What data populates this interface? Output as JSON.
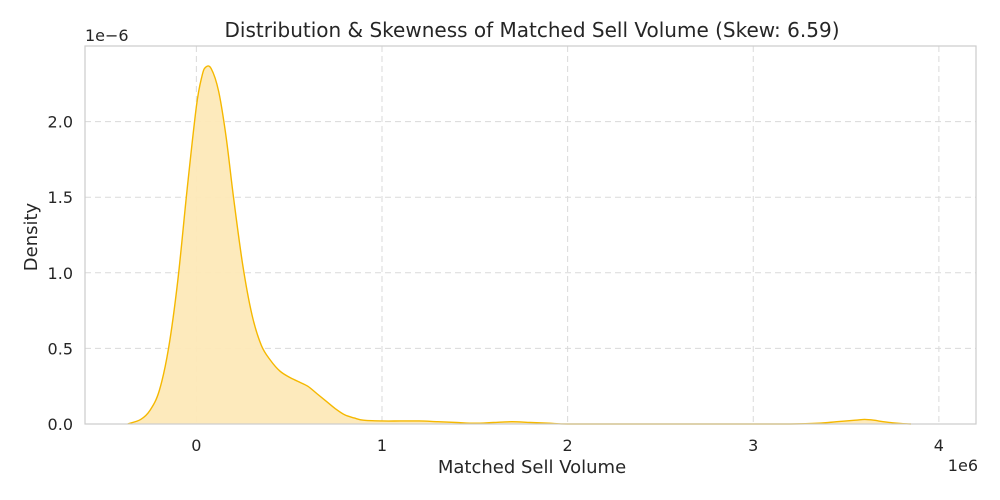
{
  "chart_data": {
    "type": "area",
    "title": "Distribution & Skewness of Matched Sell Volume (Skew: 6.59)",
    "xlabel": "Matched Sell Volume",
    "ylabel": "Density",
    "x_offset_label": "1e6",
    "y_offset_label": "1e−6",
    "xlim": [
      -0.6,
      4.2
    ],
    "ylim": [
      0,
      2.5
    ],
    "x_ticks": [
      0,
      1,
      2,
      3,
      4
    ],
    "x_tick_labels": [
      "0",
      "1",
      "2",
      "3",
      "4"
    ],
    "y_ticks": [
      0.0,
      0.5,
      1.0,
      1.5,
      2.0
    ],
    "y_tick_labels": [
      "0.0",
      "0.5",
      "1.0",
      "1.5",
      "2.0"
    ],
    "grid": true,
    "colors": {
      "line": "#f5b800",
      "fill": "#fde9b8",
      "frame": "#cccccc",
      "grid": "#dadada"
    },
    "series": [
      {
        "x": [
          -0.37,
          -0.3,
          -0.25,
          -0.2,
          -0.15,
          -0.1,
          -0.05,
          0.0,
          0.03,
          0.05,
          0.08,
          0.12,
          0.16,
          0.2,
          0.25,
          0.3,
          0.35,
          0.4,
          0.45,
          0.5,
          0.55,
          0.6,
          0.65,
          0.7,
          0.75,
          0.8,
          0.85,
          0.9,
          1.0,
          1.1,
          1.2,
          1.3,
          1.4,
          1.5,
          1.6,
          1.7,
          1.8,
          1.9,
          2.0,
          2.2,
          2.5,
          2.8,
          3.0,
          3.2,
          3.35,
          3.45,
          3.55,
          3.6,
          3.65,
          3.7,
          3.75,
          3.8,
          3.85
        ],
        "y": [
          0.0,
          0.03,
          0.09,
          0.22,
          0.5,
          0.95,
          1.55,
          2.1,
          2.3,
          2.36,
          2.35,
          2.2,
          1.9,
          1.5,
          1.05,
          0.72,
          0.52,
          0.42,
          0.35,
          0.31,
          0.28,
          0.25,
          0.2,
          0.15,
          0.1,
          0.06,
          0.04,
          0.025,
          0.02,
          0.02,
          0.02,
          0.015,
          0.01,
          0.005,
          0.01,
          0.015,
          0.01,
          0.005,
          0.0,
          0.0,
          0.0,
          0.0,
          0.0,
          0.0,
          0.005,
          0.015,
          0.025,
          0.03,
          0.025,
          0.015,
          0.008,
          0.003,
          0.0
        ]
      }
    ]
  }
}
